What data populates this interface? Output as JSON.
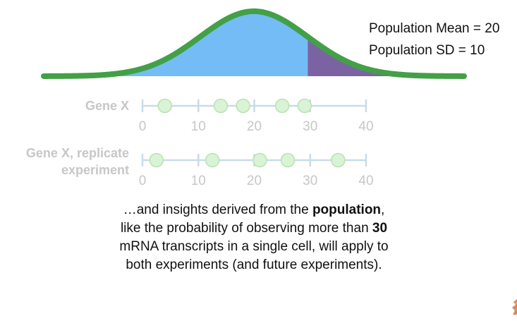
{
  "population": {
    "mean_label": "Population Mean = 20",
    "sd_label": "Population SD = 10",
    "mean": 20,
    "sd": 10,
    "shade_threshold": 30,
    "colors": {
      "curve": "#43a047",
      "fill": "#74bcf5",
      "tail": "#7b63a3"
    }
  },
  "axis": {
    "min": 0,
    "max": 40,
    "ticks": [
      0,
      10,
      20,
      30,
      40
    ]
  },
  "rows": [
    {
      "label": "Gene X",
      "values": [
        4,
        14,
        18,
        25,
        29
      ]
    },
    {
      "label": "Gene X, replicate experiment",
      "values": [
        2.5,
        12.5,
        21,
        26,
        35
      ]
    }
  ],
  "caption": {
    "parts": [
      {
        "text": "…and insights derived from the ",
        "bold": false
      },
      {
        "text": "population",
        "bold": true
      },
      {
        "text": ", like the probability of observing more than ",
        "bold": false
      },
      {
        "text": "30",
        "bold": true
      },
      {
        "text": " mRNA transcripts in a single cell, will apply to both experiments (and future experiments).",
        "bold": false
      }
    ]
  },
  "colors": {
    "axis_line": "#c9dbe9",
    "tick_label": "#c7c7c7",
    "row_label": "#c7c7c7",
    "dot_fill": "#d9f3d5",
    "dot_stroke": "#b9e2b3"
  }
}
